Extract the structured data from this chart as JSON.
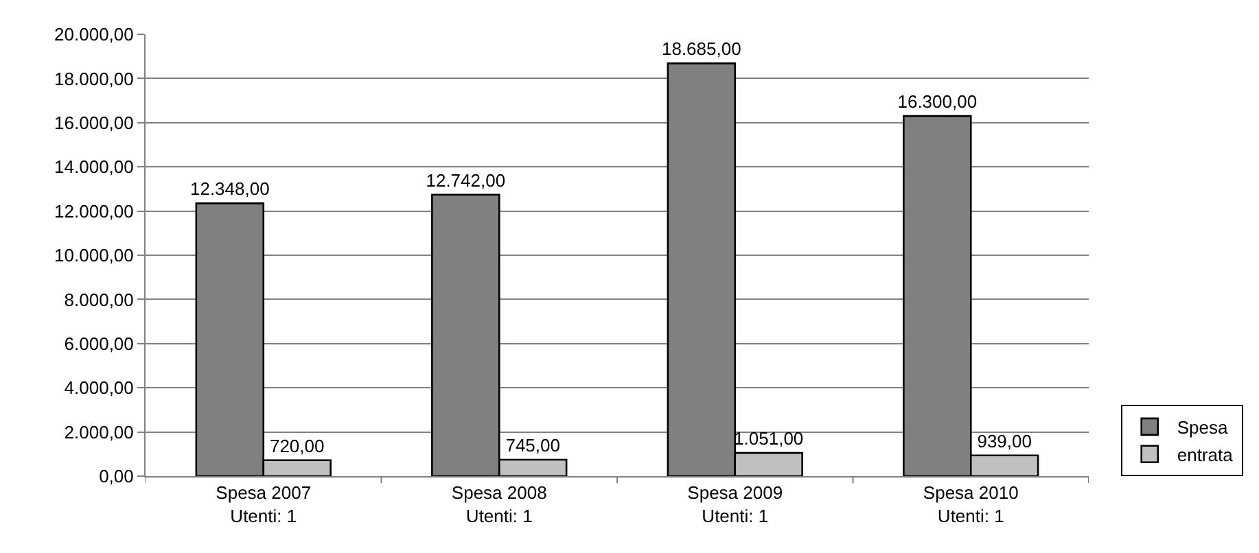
{
  "chart_data": {
    "type": "bar",
    "categories": [
      "Spesa 2007\nUtenti: 1",
      "Spesa 2008\nUtenti: 1",
      "Spesa 2009\nUtenti: 1",
      "Spesa 2010\nUtenti: 1"
    ],
    "series": [
      {
        "name": "Spesa",
        "color": "#808080",
        "values": [
          12348,
          12742,
          18685,
          16300
        ],
        "value_labels": [
          "12.348,00",
          "12.742,00",
          "18.685,00",
          "16.300,00"
        ]
      },
      {
        "name": "entrata",
        "color": "#c0c0c0",
        "values": [
          720,
          745,
          1051,
          939
        ],
        "value_labels": [
          "720,00",
          "745,00",
          "1.051,00",
          "939,00"
        ]
      }
    ],
    "ylim": [
      0,
      20000
    ],
    "yticks": [
      {
        "value": 0,
        "label": "0,00"
      },
      {
        "value": 2000,
        "label": "2.000,00"
      },
      {
        "value": 4000,
        "label": "4.000,00"
      },
      {
        "value": 6000,
        "label": "6.000,00"
      },
      {
        "value": 8000,
        "label": "8.000,00"
      },
      {
        "value": 10000,
        "label": "10.000,00"
      },
      {
        "value": 12000,
        "label": "12.000,00"
      },
      {
        "value": 14000,
        "label": "14.000,00"
      },
      {
        "value": 16000,
        "label": "16.000,00"
      },
      {
        "value": 18000,
        "label": "18.000,00"
      },
      {
        "value": 20000,
        "label": "20.000,00"
      }
    ],
    "grid": "y",
    "legend": "right"
  }
}
